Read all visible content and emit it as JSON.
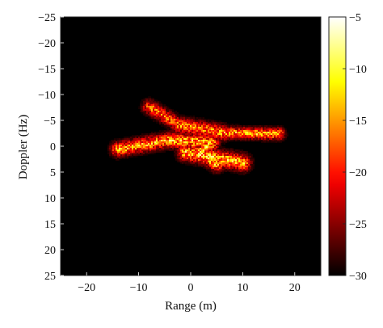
{
  "chart_data": {
    "type": "heatmap",
    "title": "",
    "xlabel": "Range (m)",
    "ylabel": "Doppler (Hz)",
    "xlim": [
      -25,
      25
    ],
    "ylim": [
      -25,
      25
    ],
    "y_inverted": true,
    "x_ticks": [
      -20,
      -10,
      0,
      10,
      20
    ],
    "x_tick_labels": [
      "−20",
      "−10",
      "0",
      "10",
      "20"
    ],
    "y_ticks": [
      -25,
      -20,
      -15,
      -10,
      -5,
      0,
      5,
      10,
      15,
      20,
      25
    ],
    "y_tick_labels": [
      "−25",
      "−20",
      "−15",
      "−10",
      "−5",
      "0",
      "5",
      "10",
      "15",
      "20",
      "25"
    ],
    "colorbar": {
      "colormap": "hot",
      "range": [
        -30,
        -5
      ],
      "ticks": [
        -5,
        -10,
        -15,
        -20,
        -25,
        -30
      ],
      "tick_labels": [
        "−5",
        "−10",
        "−15",
        "−20",
        "−25",
        "−30"
      ]
    },
    "background_value": -30,
    "target_segments": [
      {
        "x1": -8,
        "y1": -7.6,
        "x2": -2,
        "y2": -4,
        "width": 1.4,
        "peak": -12
      },
      {
        "x1": -2,
        "y1": -4,
        "x2": 6,
        "y2": -2.6,
        "width": 1.6,
        "peak": -10
      },
      {
        "x1": 6,
        "y1": -2.6,
        "x2": 17,
        "y2": -2.4,
        "width": 1.2,
        "peak": -8
      },
      {
        "x1": -14,
        "y1": 0.6,
        "x2": -4,
        "y2": -1.2,
        "width": 1.5,
        "peak": -8
      },
      {
        "x1": -4,
        "y1": -1.2,
        "x2": 4,
        "y2": -0.6,
        "width": 1.6,
        "peak": -7
      },
      {
        "x1": -1,
        "y1": 1.2,
        "x2": 10,
        "y2": 3.2,
        "width": 1.7,
        "peak": -7
      },
      {
        "x1": 2,
        "y1": 1,
        "x2": 5,
        "y2": 3.5,
        "width": 1.5,
        "peak": -6
      }
    ],
    "hotspots": [
      {
        "x": -4,
        "y": -0.8,
        "value": -6
      },
      {
        "x": -7.5,
        "y": -7.5,
        "value": -12
      },
      {
        "x": 3,
        "y": 0.2,
        "value": -5.5
      },
      {
        "x": 4.5,
        "y": 2.5,
        "value": -6
      },
      {
        "x": 11.5,
        "y": -2.5,
        "value": -8
      },
      {
        "x": 16,
        "y": -2.6,
        "value": -9
      },
      {
        "x": -13,
        "y": 0.5,
        "value": -10
      },
      {
        "x": -1,
        "y": -3.5,
        "value": -11
      },
      {
        "x": 7,
        "y": 3,
        "value": -10
      }
    ]
  }
}
